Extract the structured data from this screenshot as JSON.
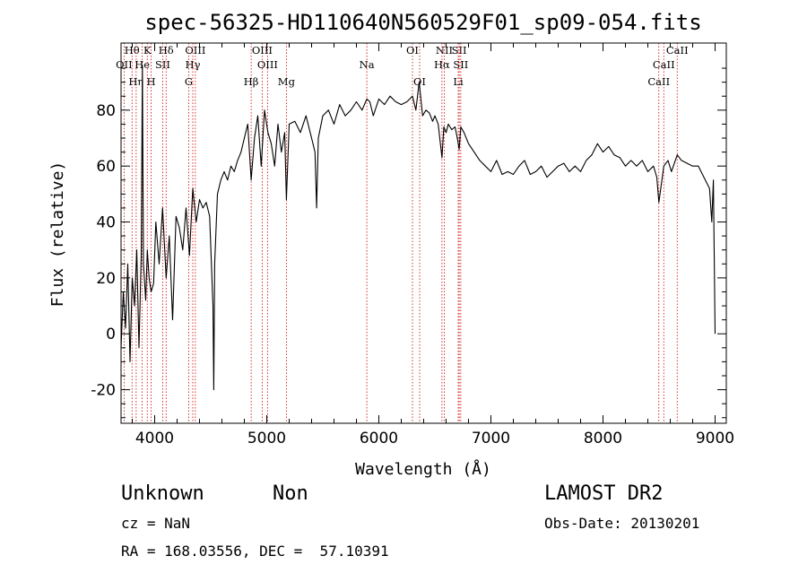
{
  "chart_data": {
    "type": "line",
    "title": "spec-56325-HD110640N560529F01_sp09-054.fits",
    "xlabel": "Wavelength (Å)",
    "ylabel": "Flux (relative)",
    "xlim": [
      3700,
      9100
    ],
    "ylim": [
      -32,
      104
    ],
    "xticks": [
      4000,
      5000,
      6000,
      7000,
      8000,
      9000
    ],
    "yticks": [
      -20,
      0,
      20,
      40,
      60,
      80
    ],
    "grid": false,
    "line_color": "#000000",
    "marker_color": "#cc0000",
    "series": [
      {
        "x": [
          3700,
          3720,
          3740,
          3760,
          3780,
          3800,
          3820,
          3840,
          3860,
          3880,
          3890,
          3900,
          3920,
          3934,
          3950,
          3968,
          3990,
          4010,
          4040,
          4070,
          4102,
          4130,
          4160,
          4190,
          4220,
          4250,
          4280,
          4310,
          4340,
          4370,
          4400,
          4430,
          4460,
          4490,
          4520,
          4527,
          4535,
          4560,
          4590,
          4620,
          4650,
          4680,
          4710,
          4740,
          4770,
          4800,
          4830,
          4861,
          4890,
          4920,
          4950,
          4980,
          5010,
          5040,
          5070,
          5100,
          5130,
          5160,
          5175,
          5200,
          5250,
          5300,
          5350,
          5400,
          5430,
          5445,
          5460,
          5500,
          5550,
          5600,
          5650,
          5700,
          5750,
          5800,
          5850,
          5893,
          5920,
          5950,
          6000,
          6050,
          6100,
          6150,
          6200,
          6250,
          6300,
          6330,
          6360,
          6390,
          6420,
          6450,
          6480,
          6500,
          6530,
          6563,
          6580,
          6600,
          6620,
          6650,
          6680,
          6700,
          6717,
          6731,
          6760,
          6800,
          6850,
          6900,
          6950,
          7000,
          7050,
          7100,
          7150,
          7200,
          7250,
          7300,
          7350,
          7400,
          7450,
          7500,
          7550,
          7600,
          7650,
          7700,
          7750,
          7800,
          7850,
          7900,
          7950,
          8000,
          8050,
          8100,
          8150,
          8200,
          8250,
          8300,
          8350,
          8400,
          8450,
          8480,
          8498,
          8542,
          8580,
          8610,
          8662,
          8700,
          8750,
          8800,
          8850,
          8900,
          8950,
          8970,
          8985,
          9000
        ],
        "y": [
          -5,
          15,
          2,
          25,
          -10,
          20,
          10,
          30,
          -5,
          28,
          96,
          25,
          12,
          30,
          20,
          15,
          18,
          40,
          25,
          45,
          20,
          35,
          5,
          42,
          38,
          30,
          45,
          28,
          52,
          40,
          48,
          45,
          47,
          42,
          10,
          -20,
          25,
          50,
          55,
          58,
          55,
          60,
          58,
          62,
          65,
          70,
          75,
          55,
          70,
          78,
          60,
          80,
          72,
          68,
          60,
          75,
          65,
          72,
          48,
          75,
          76,
          72,
          78,
          70,
          65,
          45,
          70,
          78,
          80,
          75,
          82,
          78,
          80,
          83,
          80,
          84,
          83,
          78,
          84,
          82,
          85,
          83,
          82,
          83,
          85,
          80,
          90,
          78,
          80,
          79,
          76,
          78,
          75,
          63,
          74,
          72,
          75,
          73,
          74,
          70,
          66,
          74,
          72,
          68,
          65,
          62,
          60,
          58,
          62,
          57,
          58,
          57,
          60,
          62,
          57,
          58,
          60,
          56,
          58,
          60,
          61,
          58,
          60,
          58,
          62,
          64,
          68,
          65,
          67,
          64,
          63,
          60,
          62,
          60,
          62,
          58,
          60,
          56,
          47,
          60,
          62,
          58,
          64,
          62,
          61,
          60,
          60,
          56,
          52,
          40,
          55,
          0
        ]
      }
    ],
    "line_markers": [
      {
        "label": "Hθ",
        "x": 3798,
        "row": 0
      },
      {
        "label": "K",
        "x": 3934,
        "row": 0
      },
      {
        "label": "Hδ",
        "x": 4102,
        "row": 0
      },
      {
        "label": "OIII",
        "x": 4363,
        "row": 0
      },
      {
        "label": "OIII",
        "x": 4959,
        "row": 0
      },
      {
        "label": "OI",
        "x": 6300,
        "row": 0
      },
      {
        "label": "NII",
        "x": 6584,
        "row": 0
      },
      {
        "label": "SII",
        "x": 6717,
        "row": 0
      },
      {
        "label": "CaII",
        "x": 8662,
        "row": 0
      },
      {
        "label": "OII",
        "x": 3727,
        "row": 1
      },
      {
        "label": "He",
        "x": 3889,
        "row": 1
      },
      {
        "label": "SII",
        "x": 4072,
        "row": 1
      },
      {
        "label": "Hγ",
        "x": 4340,
        "row": 1
      },
      {
        "label": "OIII",
        "x": 5007,
        "row": 1
      },
      {
        "label": "Na",
        "x": 5893,
        "row": 1
      },
      {
        "label": "Hα",
        "x": 6563,
        "row": 1
      },
      {
        "label": "SII",
        "x": 6731,
        "row": 1
      },
      {
        "label": "CaII",
        "x": 8542,
        "row": 1
      },
      {
        "label": "Hη",
        "x": 3835,
        "row": 2
      },
      {
        "label": "H",
        "x": 3968,
        "row": 2
      },
      {
        "label": "G",
        "x": 4304,
        "row": 2
      },
      {
        "label": "Hβ",
        "x": 4861,
        "row": 2
      },
      {
        "label": "Mg",
        "x": 5175,
        "row": 2
      },
      {
        "label": "OI",
        "x": 6364,
        "row": 2
      },
      {
        "label": "Li",
        "x": 6708,
        "row": 2
      },
      {
        "label": "CaII",
        "x": 8498,
        "row": 2
      }
    ]
  },
  "info": {
    "object_type": "Unknown",
    "object_class": "Non",
    "survey": "LAMOST DR2",
    "cz": "cz = NaN",
    "obs_date": "Obs-Date: 20130201",
    "coords": "RA = 168.03556, DEC =  57.10391"
  }
}
